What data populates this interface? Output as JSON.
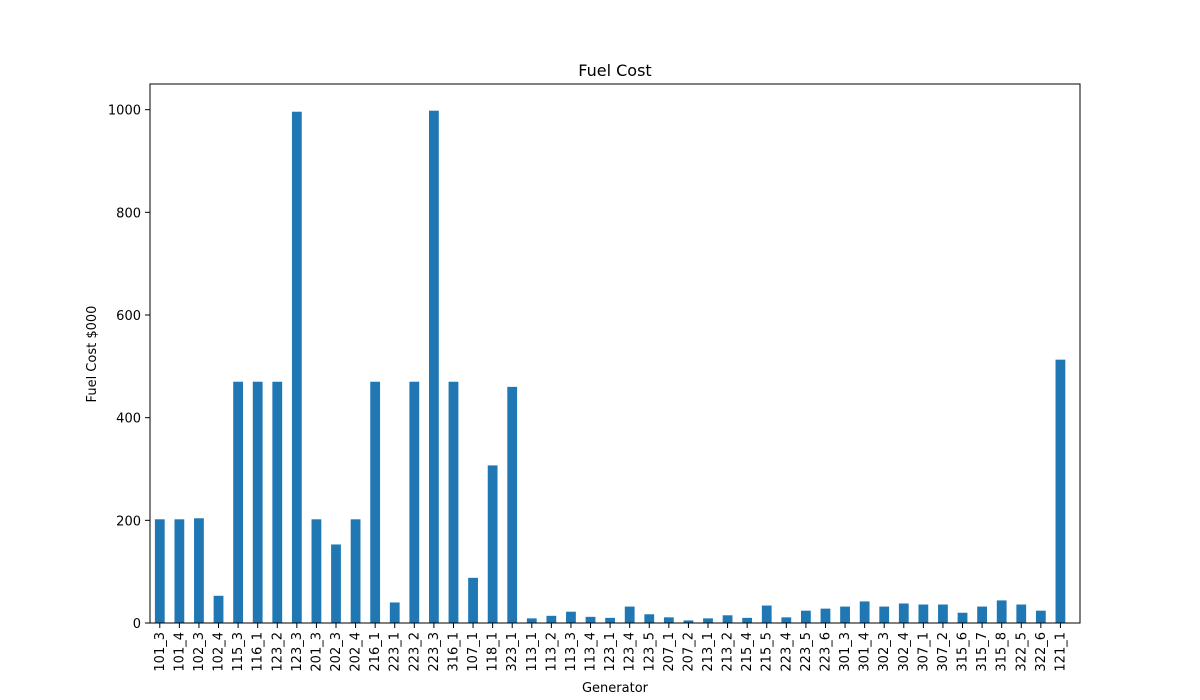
{
  "chart_data": {
    "type": "bar",
    "title": "Fuel Cost",
    "xlabel": "Generator",
    "ylabel": "Fuel Cost $000",
    "ylim": [
      0,
      1050
    ],
    "yticks": [
      0,
      200,
      400,
      600,
      800,
      1000
    ],
    "grid": false,
    "legend": "none",
    "bar_color": "#1f77b4",
    "categories": [
      "101_3",
      "101_4",
      "102_3",
      "102_4",
      "115_3",
      "116_1",
      "123_2",
      "123_3",
      "201_3",
      "202_3",
      "202_4",
      "216_1",
      "223_1",
      "223_2",
      "223_3",
      "316_1",
      "107_1",
      "118_1",
      "323_1",
      "113_1",
      "113_2",
      "113_3",
      "113_4",
      "123_1",
      "123_4",
      "123_5",
      "207_1",
      "207_2",
      "213_1",
      "213_2",
      "215_4",
      "215_5",
      "223_4",
      "223_5",
      "223_6",
      "301_3",
      "301_4",
      "302_3",
      "302_4",
      "307_1",
      "307_2",
      "315_6",
      "315_7",
      "315_8",
      "322_5",
      "322_6",
      "121_1"
    ],
    "values": [
      202,
      202,
      204,
      53,
      470,
      470,
      470,
      996,
      202,
      153,
      202,
      470,
      40,
      470,
      998,
      470,
      88,
      307,
      460,
      9,
      14,
      22,
      12,
      10,
      32,
      17,
      11,
      5,
      9,
      15,
      10,
      34,
      11,
      24,
      28,
      32,
      42,
      32,
      38,
      36,
      36,
      20,
      32,
      44,
      36,
      24,
      513
    ]
  }
}
